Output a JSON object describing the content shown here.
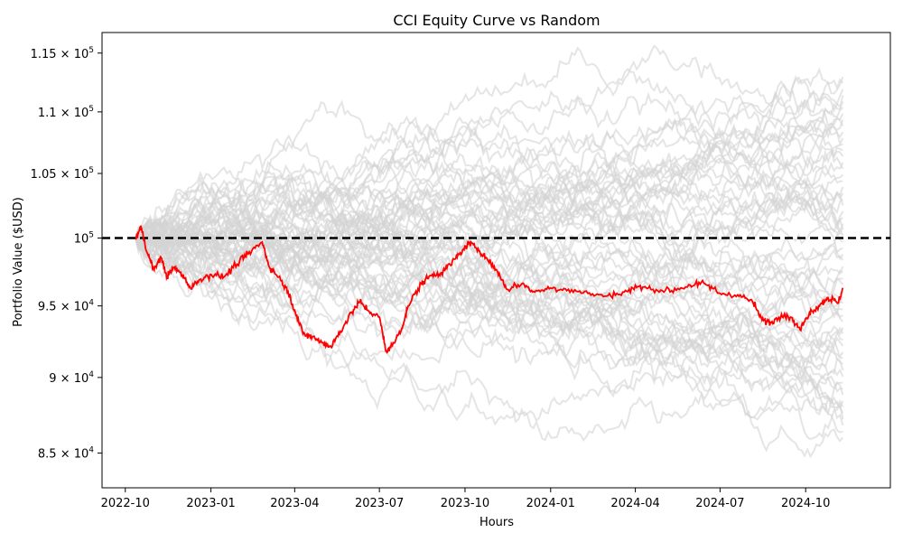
{
  "chart_data": {
    "type": "line",
    "title": "CCI Equity Curve vs Random",
    "xlabel": "Hours",
    "ylabel": "Portfolio Value ($USD)",
    "y_scale": "log",
    "grid": false,
    "x_range": [
      "2022-09-06",
      "2024-12-31"
    ],
    "ylim": [
      82800,
      116800
    ],
    "x_ticks": [
      {
        "date": "2022-10-01",
        "label": "2022-10"
      },
      {
        "date": "2023-01-01",
        "label": "2023-01"
      },
      {
        "date": "2023-04-01",
        "label": "2023-04"
      },
      {
        "date": "2023-07-01",
        "label": "2023-07"
      },
      {
        "date": "2023-10-01",
        "label": "2023-10"
      },
      {
        "date": "2024-01-01",
        "label": "2024-01"
      },
      {
        "date": "2024-04-01",
        "label": "2024-04"
      },
      {
        "date": "2024-07-01",
        "label": "2024-07"
      },
      {
        "date": "2024-10-01",
        "label": "2024-10"
      }
    ],
    "y_ticks": [
      {
        "value": 85000,
        "mantissa": "8.5",
        "exponent": "4"
      },
      {
        "value": 90000,
        "mantissa": "9",
        "exponent": "4"
      },
      {
        "value": 95000,
        "mantissa": "9.5",
        "exponent": "4"
      },
      {
        "value": 100000,
        "mantissa": "",
        "exponent": "5"
      },
      {
        "value": 105000,
        "mantissa": "1.05",
        "exponent": "5"
      },
      {
        "value": 110000,
        "mantissa": "1.1",
        "exponent": "5"
      },
      {
        "value": 115000,
        "mantissa": "1.15",
        "exponent": "5"
      }
    ],
    "reference_line": {
      "value": 100000,
      "color": "#000000",
      "style": "dashed"
    },
    "colors": {
      "main": "#ff0000",
      "random": "#d3d3d3"
    },
    "main_series": {
      "x": [
        "2022-10-12",
        "2022-10-18",
        "2022-10-25",
        "2022-11-01",
        "2022-11-08",
        "2022-11-15",
        "2022-11-22",
        "2022-12-01",
        "2022-12-10",
        "2022-12-20",
        "2023-01-01",
        "2023-01-15",
        "2023-02-01",
        "2023-02-10",
        "2023-02-25",
        "2023-03-05",
        "2023-03-15",
        "2023-03-25",
        "2023-04-01",
        "2023-04-10",
        "2023-04-20",
        "2023-05-01",
        "2023-05-10",
        "2023-05-20",
        "2023-06-01",
        "2023-06-10",
        "2023-06-20",
        "2023-07-01",
        "2023-07-08",
        "2023-07-15",
        "2023-07-25",
        "2023-08-01",
        "2023-08-15",
        "2023-08-25",
        "2023-09-05",
        "2023-09-15",
        "2023-09-25",
        "2023-10-05",
        "2023-10-15",
        "2023-10-25",
        "2023-11-05",
        "2023-11-15",
        "2023-12-01",
        "2023-12-15",
        "2024-01-01",
        "2024-01-20",
        "2024-02-10",
        "2024-03-01",
        "2024-03-20",
        "2024-04-05",
        "2024-04-20",
        "2024-05-10",
        "2024-05-30",
        "2024-06-15",
        "2024-07-01",
        "2024-07-20",
        "2024-08-05",
        "2024-08-15",
        "2024-08-25",
        "2024-09-05",
        "2024-09-15",
        "2024-09-25",
        "2024-10-05",
        "2024-10-15",
        "2024-10-25",
        "2024-11-05",
        "2024-11-10"
      ],
      "y": [
        100000,
        100800,
        98800,
        97600,
        98600,
        97100,
        97800,
        97300,
        96300,
        96900,
        97300,
        97100,
        98300,
        98800,
        99700,
        97800,
        97100,
        96000,
        94700,
        93000,
        92800,
        92400,
        92100,
        93200,
        94500,
        95300,
        94600,
        94200,
        91800,
        92200,
        93400,
        95000,
        96600,
        97200,
        97400,
        98000,
        98800,
        99600,
        99200,
        98400,
        97500,
        96200,
        96600,
        96000,
        96300,
        96200,
        95900,
        95700,
        96000,
        96400,
        96200,
        96100,
        96500,
        96600,
        95900,
        95800,
        95300,
        94000,
        93800,
        94400,
        94200,
        93300,
        94500,
        95000,
        95600,
        95200,
        96300
      ]
    },
    "random_series": {
      "count": 60,
      "start_value": 100000,
      "x_start": "2022-10-12",
      "x_end": "2024-11-10",
      "final_value_range": [
        85800,
        113200
      ]
    }
  }
}
